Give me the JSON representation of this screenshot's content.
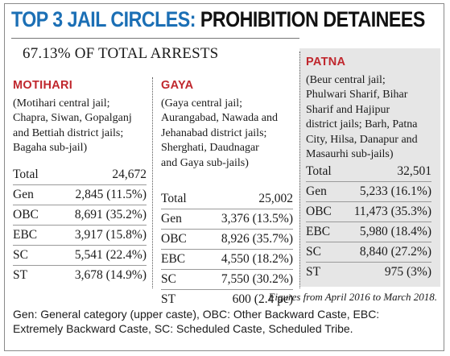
{
  "title": {
    "accent": "TOP 3 JAIL CIRCLES:",
    "rest": " PROHIBITION DETAINEES"
  },
  "subtitle": "67.13% OF TOTAL ARRESTS",
  "columns": [
    {
      "name": "MOTIHARI",
      "desc_lines": [
        "(Motihari central jail;",
        "Chapra, Siwan, Gopalganj",
        "and Bettiah district jails;",
        "Bagaha sub-jail)"
      ],
      "rows": [
        {
          "label": "Total",
          "value": "24,672"
        },
        {
          "label": "Gen",
          "value": "2,845 (11.5%)"
        },
        {
          "label": "OBC",
          "value": "8,691 (35.2%)"
        },
        {
          "label": "EBC",
          "value": "3,917 (15.8%)"
        },
        {
          "label": "SC",
          "value": "5,541 (22.4%)"
        },
        {
          "label": "ST",
          "value": "3,678 (14.9%)"
        }
      ]
    },
    {
      "name": "GAYA",
      "desc_lines": [
        "(Gaya central jail;",
        "Aurangabad, Nawada and",
        "Jehanabad district jails;",
        "Sherghati, Daudnagar",
        "and Gaya sub-jails)"
      ],
      "rows": [
        {
          "label": "Total",
          "value": "25,002"
        },
        {
          "label": "Gen",
          "value": "3,376 (13.5%)"
        },
        {
          "label": "OBC",
          "value": "8,926 (35.7%)"
        },
        {
          "label": "EBC",
          "value": "4,550 (18.2%)"
        },
        {
          "label": "SC",
          "value": "7,550 (30.2%)"
        },
        {
          "label": "ST",
          "value": "600 (2.4 pc)"
        }
      ]
    },
    {
      "name": "PATNA",
      "desc_lines": [
        "(Beur central jail;",
        "Phulwari Sharif, Bihar",
        "Sharif and Hajipur",
        "district jails; Barh, Patna",
        "City, Hilsa, Danapur and",
        "Masaurhi sub-jails)"
      ],
      "rows": [
        {
          "label": "Total",
          "value": "32,501"
        },
        {
          "label": "Gen",
          "value": "5,233 (16.1%)"
        },
        {
          "label": "OBC",
          "value": "11,473 (35.3%)"
        },
        {
          "label": "EBC",
          "value": "5,980 (18.4%)"
        },
        {
          "label": "SC",
          "value": "8,840 (27.2%)"
        },
        {
          "label": "ST",
          "value": "975 (3%)"
        }
      ]
    }
  ],
  "note": "Figures from April 2016 to March 2018.",
  "legend_lines": [
    "Gen: General category (upper caste), OBC: Other Backward Caste, EBC:",
    "Extremely Backward Caste, SC: Scheduled Caste, Scheduled Tribe."
  ],
  "colors": {
    "accent": "#1b6fb5",
    "head": "#c0272d",
    "shade": "#e6e6e6"
  }
}
